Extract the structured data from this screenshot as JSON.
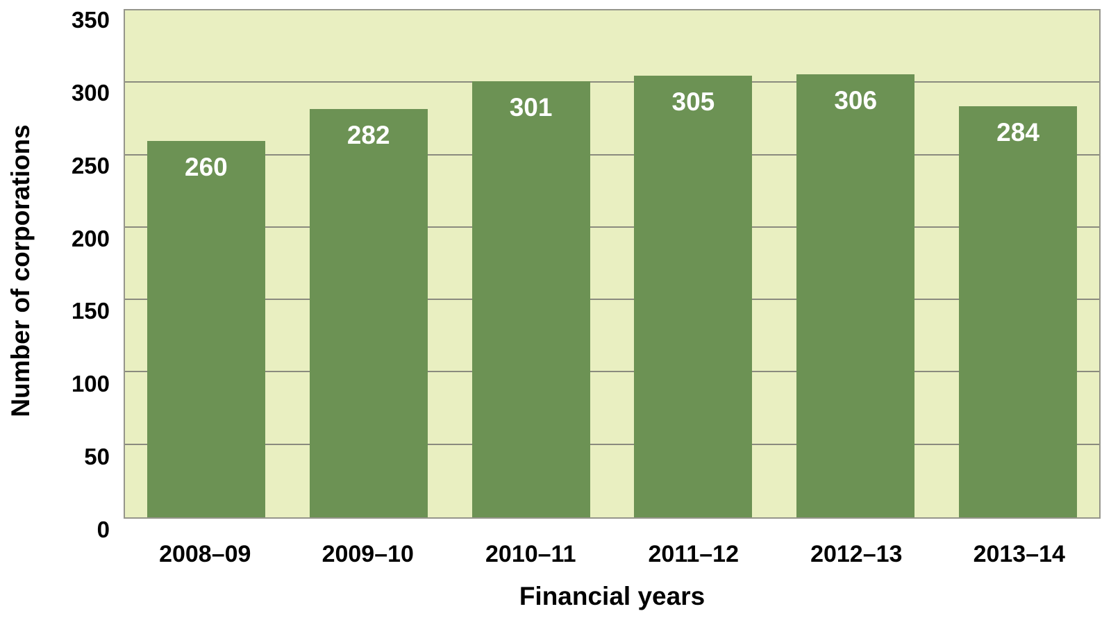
{
  "chart_data": {
    "type": "bar",
    "title": "",
    "categories": [
      "2008–09",
      "2009–10",
      "2010–11",
      "2011–12",
      "2012–13",
      "2013–14"
    ],
    "values": [
      260,
      282,
      301,
      305,
      306,
      284
    ],
    "xlabel": "Financial years",
    "ylabel": "Number of corporations",
    "ylim": [
      0,
      350
    ],
    "yticks": [
      0,
      50,
      100,
      150,
      200,
      250,
      300,
      350
    ],
    "grid": "horizontal-only",
    "legend_position": "none",
    "data_labels": "inside-top, white, bold",
    "colors": {
      "bar": "#6C9254",
      "plot_background": "#E9EFC1",
      "gridline": "#8A8A7E",
      "plot_border": "#95958B",
      "bar_label_text": "#FFFFFF",
      "axis_text": "#000000",
      "page_background": "#FFFFFF"
    }
  }
}
